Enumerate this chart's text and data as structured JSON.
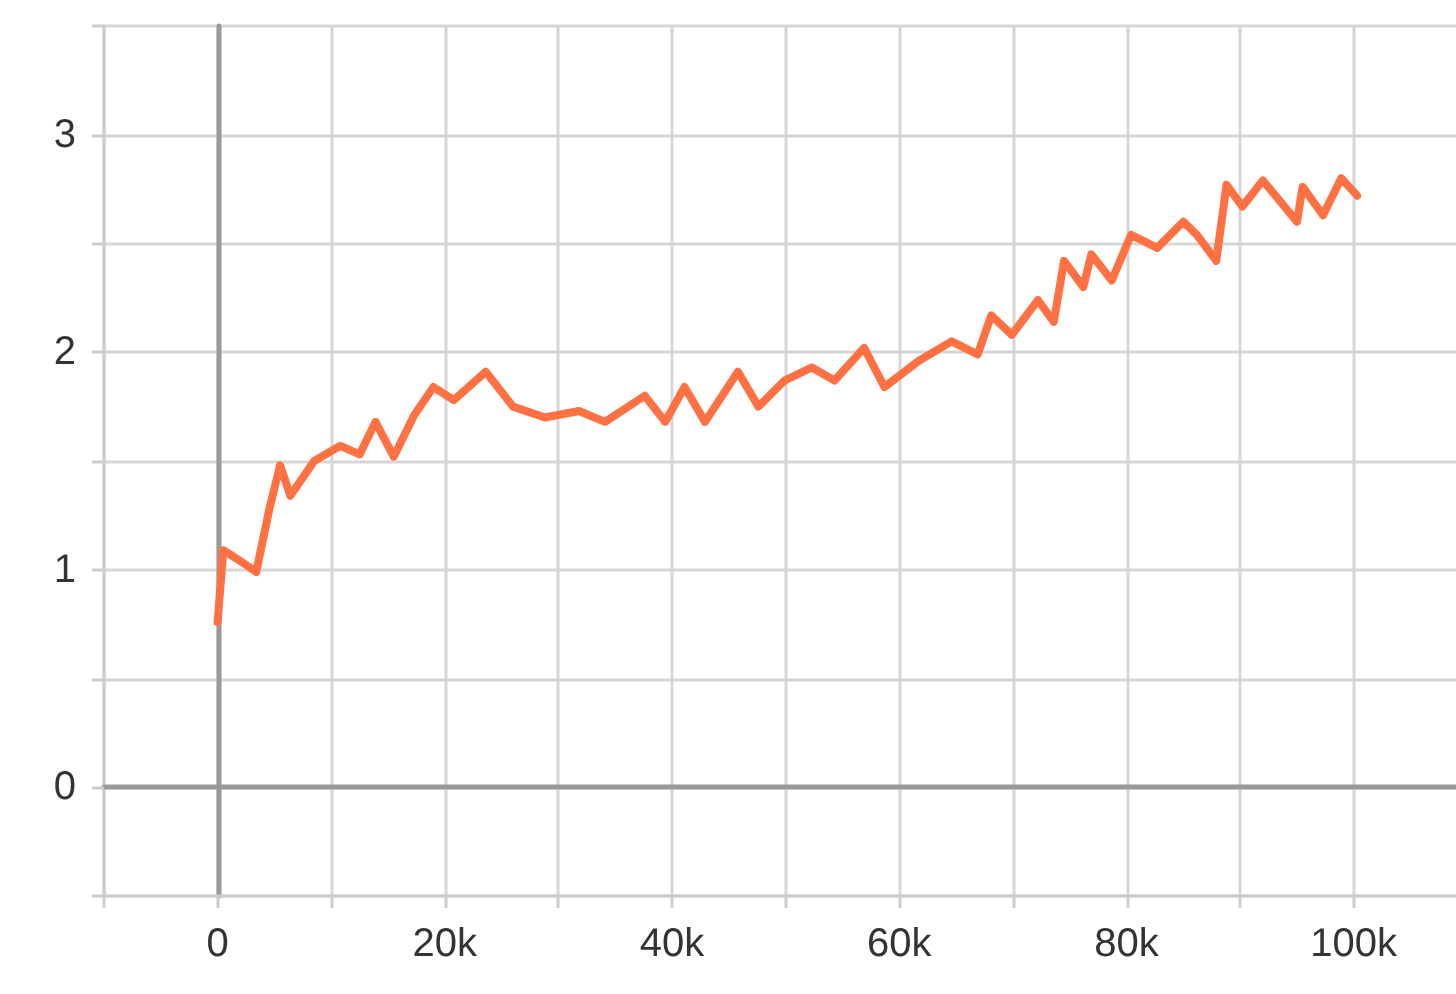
{
  "chart_data": {
    "type": "line",
    "x": [
      0,
      500,
      2000,
      3400,
      4600,
      5500,
      6400,
      8500,
      10800,
      12500,
      13900,
      15500,
      17300,
      19000,
      20800,
      23600,
      26000,
      28800,
      31800,
      34100,
      37600,
      39400,
      41100,
      42900,
      45800,
      47600,
      49900,
      52300,
      54300,
      56900,
      58700,
      61700,
      64600,
      66900,
      68100,
      69900,
      72200,
      73600,
      74500,
      76200,
      76900,
      78700,
      80400,
      82700,
      85000,
      86200,
      87900,
      88800,
      90200,
      92000,
      95000,
      95500,
      97300,
      98900,
      100300
    ],
    "series": [
      {
        "color": "#ff7043",
        "values": [
          0.76,
          1.09,
          1.04,
          0.99,
          1.29,
          1.48,
          1.34,
          1.5,
          1.57,
          1.53,
          1.68,
          1.52,
          1.71,
          1.84,
          1.78,
          1.91,
          1.75,
          1.7,
          1.73,
          1.68,
          1.8,
          1.68,
          1.84,
          1.68,
          1.91,
          1.75,
          1.87,
          1.93,
          1.87,
          2.02,
          1.84,
          1.96,
          2.05,
          1.99,
          2.17,
          2.08,
          2.24,
          2.14,
          2.42,
          2.3,
          2.45,
          2.33,
          2.54,
          2.48,
          2.6,
          2.54,
          2.42,
          2.77,
          2.67,
          2.79,
          2.6,
          2.76,
          2.63,
          2.8,
          2.72
        ]
      }
    ],
    "xlim": [
      -10000,
      109000
    ],
    "xticks": [
      {
        "value": -10000,
        "label": null
      },
      {
        "value": 0,
        "label": "0"
      },
      {
        "value": 10000,
        "label": null
      },
      {
        "value": 20000,
        "label": "20k"
      },
      {
        "value": 30000,
        "label": null
      },
      {
        "value": 40000,
        "label": "40k"
      },
      {
        "value": 50000,
        "label": null
      },
      {
        "value": 60000,
        "label": "60k"
      },
      {
        "value": 70000,
        "label": null
      },
      {
        "value": 80000,
        "label": "80k"
      },
      {
        "value": 90000,
        "label": null
      },
      {
        "value": 100000,
        "label": "100k"
      }
    ],
    "ylim": [
      -0.5,
      3.5
    ],
    "yticks": [
      {
        "value": -0.5,
        "label": null
      },
      0,
      {
        "value": 0.5,
        "label": null
      },
      1,
      {
        "value": 1.5,
        "label": null
      },
      2,
      {
        "value": 2.5,
        "label": null
      },
      3,
      {
        "value": 3.5,
        "label": null
      }
    ],
    "grid": true,
    "marker": "none",
    "line_style": "solid"
  }
}
